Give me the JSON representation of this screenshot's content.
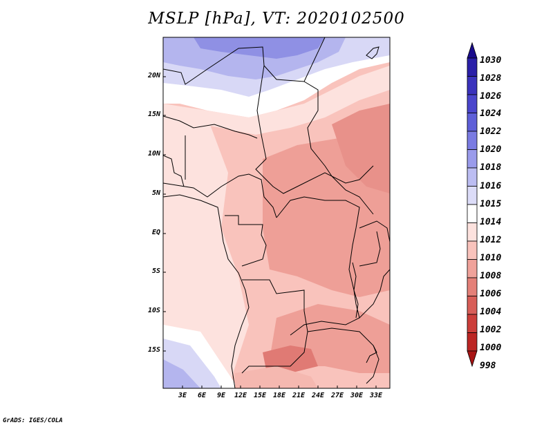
{
  "title": "MSLP [hPa], VT: 2020102500",
  "footer": "GrADS: IGES/COLA",
  "map": {
    "variable": "MSLP",
    "units": "hPa",
    "valid_time": "2020102500",
    "lat_labels": [
      "20N",
      "15N",
      "10N",
      "5N",
      "EQ",
      "5S",
      "10S",
      "15S"
    ],
    "lon_labels": [
      "3E",
      "6E",
      "9E",
      "12E",
      "15E",
      "18E",
      "21E",
      "24E",
      "27E",
      "30E",
      "33E"
    ]
  },
  "colorbar": {
    "labels": [
      "1030",
      "1028",
      "1026",
      "1024",
      "1022",
      "1020",
      "1018",
      "1016",
      "1015",
      "1014",
      "1012",
      "1010",
      "1008",
      "1006",
      "1004",
      "1002",
      "1000",
      "998"
    ],
    "colors": [
      "#1a0c8c",
      "#2a1fa8",
      "#3a32bc",
      "#4a45cc",
      "#5e5fd8",
      "#7a7be2",
      "#9a9beb",
      "#bcbdf2",
      "#dcdcf8",
      "#ffffff",
      "#fde2de",
      "#f9c3bc",
      "#f0a29a",
      "#e48078",
      "#d85e58",
      "#cc3e3a",
      "#bc2624",
      "#a81414"
    ]
  },
  "levels": {
    "high_pressure": "#b4b5ee",
    "mid_high": "#d8d8f6",
    "neutral": "#ffffff",
    "slight_low": "#fde2de",
    "low": "#f5b8b0",
    "lower": "#ee9f97",
    "lowest": "#e07a74"
  }
}
